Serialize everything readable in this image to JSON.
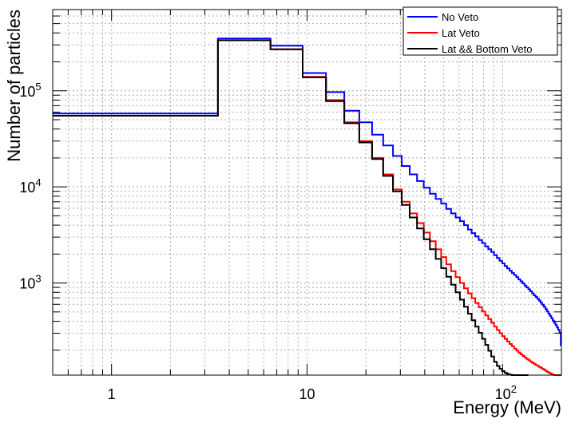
{
  "chart_data": {
    "type": "line",
    "step": true,
    "title": "",
    "xlabel": "Energy (MeV)",
    "ylabel": "Number of particles",
    "xscale": "log",
    "yscale": "log",
    "xlim": [
      0.5,
      200
    ],
    "ylim": [
      110,
      700000
    ],
    "grid": true,
    "legend_position": "top-right",
    "x_ticks": [
      {
        "value": 1,
        "base": "1",
        "exp": ""
      },
      {
        "value": 10,
        "base": "10",
        "exp": ""
      },
      {
        "value": 100,
        "base": "10",
        "exp": "2"
      }
    ],
    "y_ticks": [
      {
        "value": 1000,
        "base": "10",
        "exp": "3"
      },
      {
        "value": 10000,
        "base": "10",
        "exp": "4"
      },
      {
        "value": 100000,
        "base": "10",
        "exp": "5"
      }
    ],
    "series": [
      {
        "name": "No Veto",
        "color": "#0000ff",
        "edges": [
          0.5,
          3.5,
          6.5,
          9.5,
          12.5,
          15.5,
          18.5,
          21.5,
          24.5,
          27.5,
          30.5,
          33.5,
          36.5,
          39.5,
          42.5,
          45.5,
          48.5,
          51.5,
          54.5,
          57.5,
          60.5,
          63.5,
          66.5,
          69.5,
          72.5,
          75.5,
          78.5,
          81.5,
          84.5,
          87.5,
          90.5,
          93.5,
          96.5,
          99.5,
          102.5,
          105.5,
          108.5,
          111.5,
          114.5,
          117.5,
          120.5,
          123.5,
          126.5,
          129.5,
          132.5,
          135.5,
          138.5,
          141.5,
          144.5,
          147.5,
          150.5,
          153.5,
          156.5,
          159.5,
          162.5,
          165.5,
          168.5,
          171.5,
          174.5,
          177.5,
          180.5,
          183.5,
          186.5,
          189.5,
          192.5,
          195.5,
          198.5,
          200
        ],
        "values": [
          58000,
          350000,
          295000,
          153000,
          97000,
          62000,
          47000,
          35000,
          27000,
          21000,
          16500,
          13500,
          11500,
          9800,
          8500,
          7500,
          6700,
          5900,
          5300,
          4800,
          4400,
          4000,
          3600,
          3300,
          3050,
          2800,
          2600,
          2400,
          2250,
          2100,
          1950,
          1820,
          1700,
          1600,
          1500,
          1420,
          1340,
          1270,
          1210,
          1150,
          1090,
          1040,
          990,
          940,
          900,
          860,
          820,
          780,
          745,
          715,
          685,
          655,
          625,
          595,
          565,
          535,
          505,
          480,
          455,
          430,
          405,
          385,
          365,
          345,
          325,
          305,
          225
        ]
      },
      {
        "name": "Lat Veto",
        "color": "#ff0000",
        "edges": [
          0.5,
          3.5,
          6.5,
          9.5,
          12.5,
          15.5,
          18.5,
          21.5,
          24.5,
          27.5,
          30.5,
          33.5,
          36.5,
          39.5,
          42.5,
          45.5,
          48.5,
          51.5,
          54.5,
          57.5,
          60.5,
          63.5,
          66.5,
          69.5,
          72.5,
          75.5,
          78.5,
          81.5,
          84.5,
          87.5,
          90.5,
          93.5,
          96.5,
          99.5,
          102.5,
          105.5,
          108.5,
          111.5,
          114.5,
          117.5,
          120.5,
          123.5,
          126.5,
          129.5,
          132.5,
          135.5,
          138.5,
          141.5,
          144.5,
          147.5,
          150.5,
          153.5,
          156.5,
          159.5,
          162.5,
          165.5,
          168.5,
          171.5,
          174.5,
          177.5,
          180.5,
          183.5,
          186.5,
          189.5,
          192.5,
          195.5,
          198.5,
          200
        ],
        "values": [
          55000,
          335000,
          270000,
          140000,
          80000,
          47000,
          30000,
          20000,
          13500,
          9400,
          7000,
          5300,
          4200,
          3350,
          2720,
          2240,
          1860,
          1560,
          1330,
          1150,
          1000,
          880,
          780,
          695,
          620,
          560,
          505,
          460,
          420,
          385,
          352,
          324,
          300,
          280,
          262,
          246,
          232,
          220,
          208,
          198,
          189,
          181,
          174,
          168,
          162,
          157,
          152,
          148,
          144,
          140,
          137,
          134,
          131,
          128,
          125,
          122,
          119,
          117,
          115,
          113,
          111,
          109,
          108,
          107,
          106,
          105,
          104
        ]
      },
      {
        "name": "Lat && Bottom Veto",
        "color": "#000000",
        "edges": [
          0.5,
          3.5,
          6.5,
          9.5,
          12.5,
          15.5,
          18.5,
          21.5,
          24.5,
          27.5,
          30.5,
          33.5,
          36.5,
          39.5,
          42.5,
          45.5,
          48.5,
          51.5,
          54.5,
          57.5,
          60.5,
          63.5,
          66.5,
          69.5,
          72.5,
          75.5,
          78.5,
          81.5,
          84.5,
          87.5,
          90.5,
          93.5,
          96.5,
          99.5,
          102.5,
          105.5,
          108.5,
          111.5,
          114.5,
          117.5,
          120.5,
          123.5,
          126.5,
          129.5,
          132.5,
          135.5
        ],
        "values": [
          55000,
          335000,
          270000,
          138000,
          78000,
          46000,
          29000,
          19500,
          13000,
          9000,
          6500,
          4800,
          3700,
          2850,
          2250,
          1780,
          1430,
          1160,
          960,
          800,
          670,
          565,
          480,
          410,
          352,
          303,
          262,
          227,
          197,
          172,
          151,
          137,
          128,
          121,
          116,
          113,
          111,
          109,
          108,
          107,
          106,
          106,
          105,
          105,
          104
        ]
      }
    ]
  }
}
